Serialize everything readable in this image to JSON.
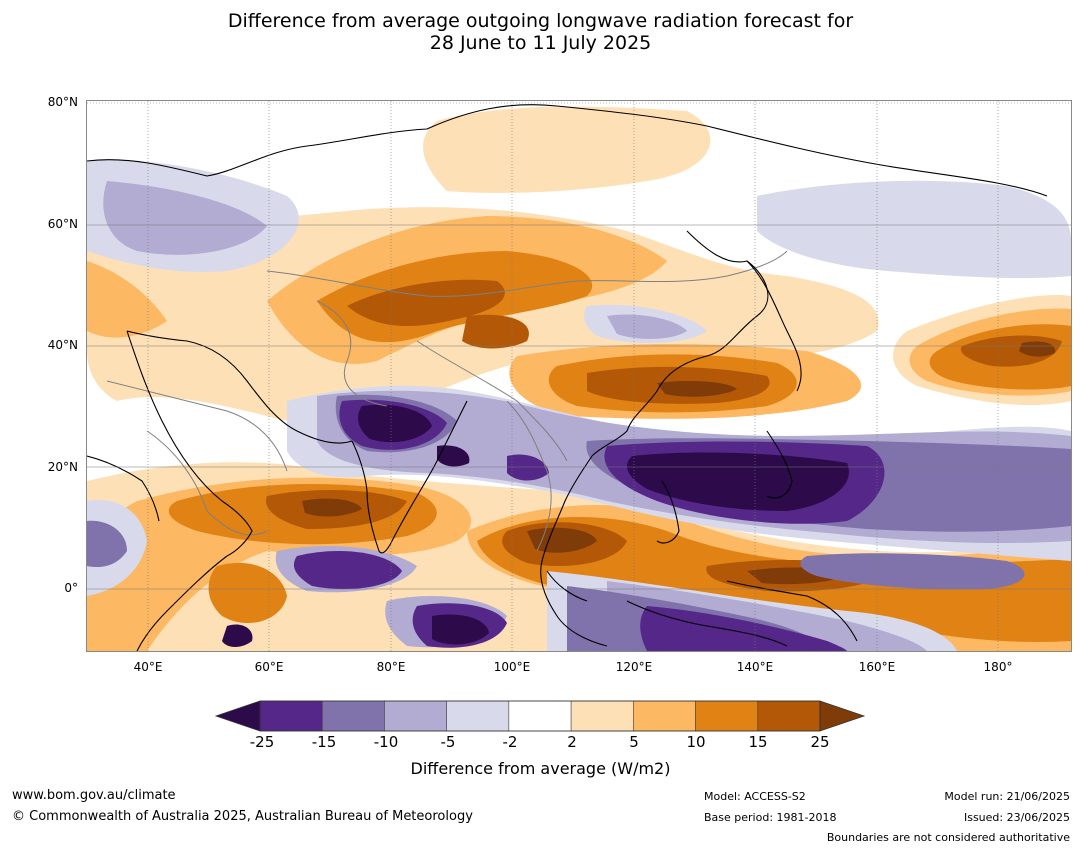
{
  "title": {
    "line1": "Difference from average outgoing longwave radiation forecast for",
    "line2": "28 June to 11 July 2025"
  },
  "map": {
    "lat_labels": [
      "80°N",
      "60°N",
      "40°N",
      "20°N",
      "0°"
    ],
    "lon_labels": [
      "40°E",
      "60°E",
      "80°E",
      "100°E",
      "120°E",
      "140°E",
      "160°E",
      "180°"
    ],
    "lon_range": [
      30,
      192
    ],
    "lat_range": [
      -10,
      81
    ]
  },
  "colorbar": {
    "title": "Difference from average (W/m2)",
    "tick_labels": [
      "-25",
      "-15",
      "-10",
      "-5",
      "-2",
      "2",
      "5",
      "10",
      "15",
      "25"
    ],
    "colors": [
      "#2d0a4a",
      "#542788",
      "#8073ac",
      "#b2abd2",
      "#d8daeb",
      "#ffffff",
      "#fee0b6",
      "#fdb863",
      "#e08214",
      "#b35806",
      "#7f3b08"
    ]
  },
  "footer": {
    "website": "www.bom.gov.au/climate",
    "copyright": "© Commonwealth of Australia 2025, Australian Bureau of Meteorology",
    "model": "Model: ACCESS-S2",
    "base_period": "Base period: 1981-2018",
    "model_run": "Model run: 21/06/2025",
    "issued": "Issued: 23/06/2025",
    "boundaries_note": "Boundaries are not considered authoritative"
  }
}
